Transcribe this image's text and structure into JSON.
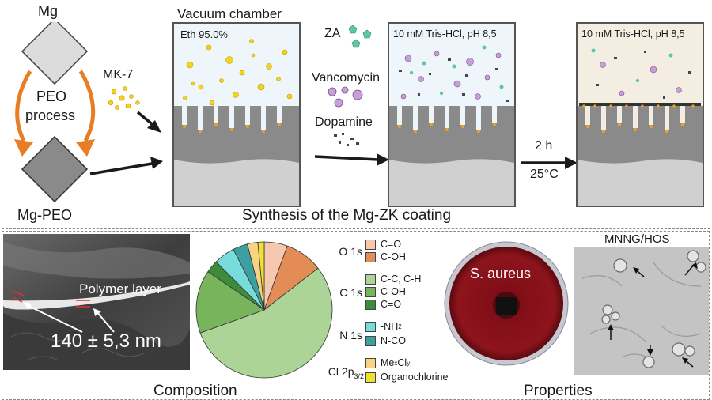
{
  "synthesis": {
    "mg_label": "Mg",
    "peo_process_line1": "PEO",
    "peo_process_line2": "process",
    "mg_peo_label": "Mg-PEO",
    "mk7_label": "MK-7",
    "vacuum_title": "Vacuum chamber",
    "eth_label": "Eth 95.0%",
    "za_label": "ZA",
    "vancomycin_label": "Vancomycin",
    "dopamine_label": "Dopamine",
    "tris_label_1": "10 mM Tris-HCl, pH 8,5",
    "tris_label_2": "10 mM Tris-HCl, pH 8,5",
    "time_label": "2 h",
    "temp_label": "25°C",
    "section_title": "Synthesis of the Mg-ZK coating"
  },
  "composition": {
    "polymer_layer_label": "Polymer layer",
    "thickness_label": "140 ± 5,3 nm",
    "section_title": "Composition",
    "legend": {
      "o1s": "O 1s",
      "c1s": "C 1s",
      "n1s": "N 1s",
      "cl_main": "Cl 2p",
      "cl_sub": "3/2",
      "items": {
        "co_o": "C=O",
        "coh_o": "C-OH",
        "cc": "C-C, C-H",
        "coh_c": "C-OH",
        "co_c": "C=O",
        "nh2_prefix": "-NH",
        "nh2_sub": "2",
        "nco": "N-CO",
        "mecl_me": "Me",
        "mecl_x": "x",
        "mecl_cl": "Cl",
        "mecl_y": "y",
        "organo": "Organochlorine"
      }
    }
  },
  "chart_data": {
    "type": "pie",
    "title": "",
    "series": [
      {
        "name": "O 1s C=O",
        "value": 5.5,
        "color": "#f6c8b0"
      },
      {
        "name": "O 1s C-OH",
        "value": 9.0,
        "color": "#e48c55"
      },
      {
        "name": "C 1s C-C, C-H",
        "value": 55.0,
        "color": "#acd496"
      },
      {
        "name": "C 1s C-OH",
        "value": 15.0,
        "color": "#78b45c"
      },
      {
        "name": "C 1s C=O",
        "value": 3.0,
        "color": "#3c8c3c"
      },
      {
        "name": "N 1s -NH2",
        "value": 5.0,
        "color": "#78dcdc"
      },
      {
        "name": "N 1s N-CO",
        "value": 3.5,
        "color": "#3ca0a0"
      },
      {
        "name": "Cl 2p3/2 MexCly",
        "value": 2.5,
        "color": "#f8d482"
      },
      {
        "name": "Cl 2p3/2 Organochlorine",
        "value": 1.5,
        "color": "#f0e030"
      }
    ],
    "start_slice": "O 1s C=O",
    "start_angle_deg": -90,
    "direction": "clockwise"
  },
  "properties": {
    "bacteria_label": "S. aureus",
    "cells_label": "MNNG/HOS",
    "section_title": "Properties"
  }
}
